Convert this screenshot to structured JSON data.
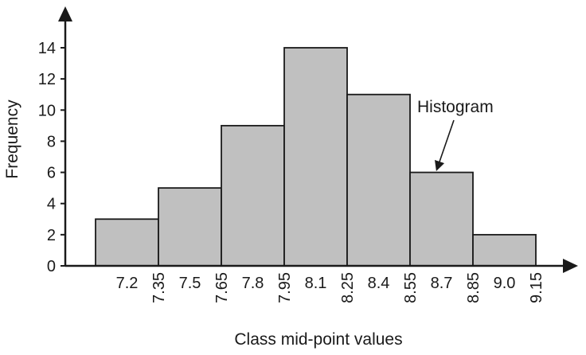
{
  "chart_data": {
    "type": "bar",
    "subtype": "histogram",
    "xlabel": "Class mid-point values",
    "ylabel": "Frequency",
    "ylim": [
      0,
      14
    ],
    "yticks": [
      "0",
      "2",
      "4",
      "6",
      "8",
      "10",
      "12",
      "14"
    ],
    "class_boundaries": [
      "7.35",
      "7.65",
      "7.95",
      "8.25",
      "8.55",
      "8.85",
      "9.15"
    ],
    "bins": [
      {
        "midpoint": "7.2",
        "frequency": 3
      },
      {
        "midpoint": "7.5",
        "frequency": 5
      },
      {
        "midpoint": "7.8",
        "frequency": 9
      },
      {
        "midpoint": "8.1",
        "frequency": 14
      },
      {
        "midpoint": "8.4",
        "frequency": 11
      },
      {
        "midpoint": "8.7",
        "frequency": 6
      },
      {
        "midpoint": "9.0",
        "frequency": 2
      }
    ],
    "annotation": {
      "text": "Histogram",
      "points_to_bin": 5
    },
    "grid": false,
    "legend": "none",
    "bar_color": "#c0c0c0",
    "edge_color": "#1a1a1a"
  }
}
